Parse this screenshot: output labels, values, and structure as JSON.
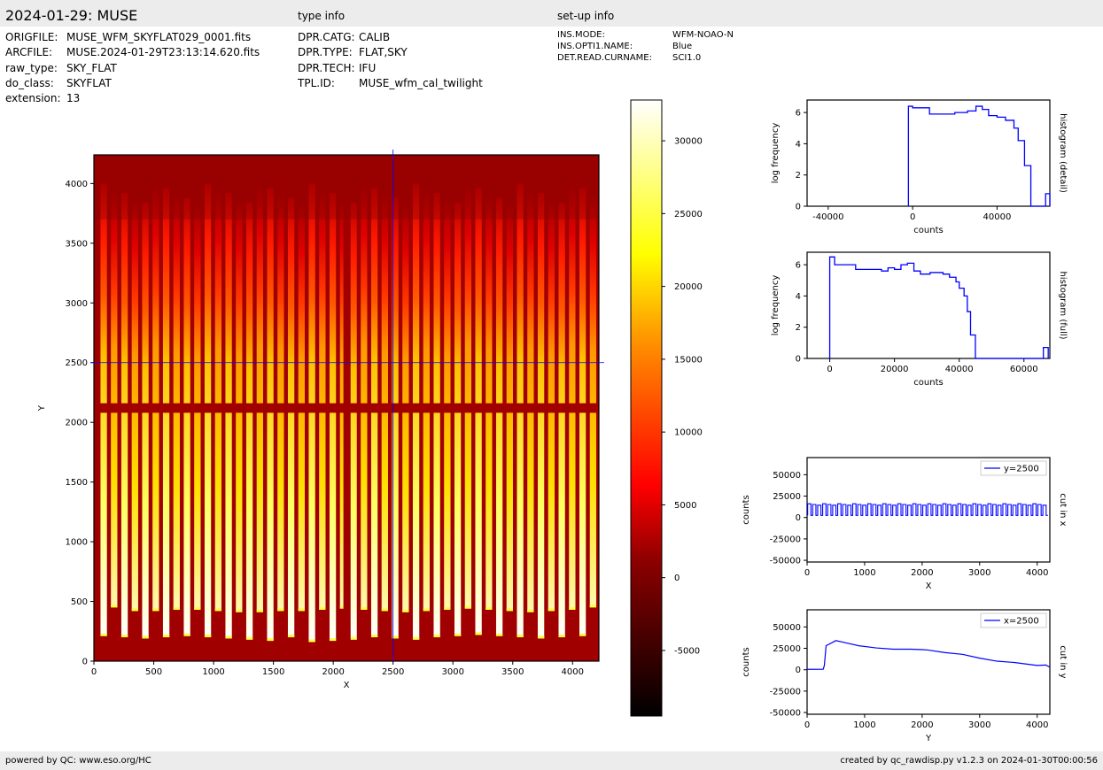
{
  "header": {
    "title": "2024-01-29: MUSE",
    "type_info_label": "type info",
    "setup_info_label": "set-up info"
  },
  "file_info": [
    {
      "key": "ORIGFILE:",
      "value": "MUSE_WFM_SKYFLAT029_0001.fits"
    },
    {
      "key": "ARCFILE:",
      "value": "MUSE.2024-01-29T23:13:14.620.fits"
    },
    {
      "key": "raw_type:",
      "value": "SKY_FLAT"
    },
    {
      "key": "do_class:",
      "value": "SKYFLAT"
    },
    {
      "key": "extension:",
      "value": "13"
    }
  ],
  "type_info": [
    {
      "key": "DPR.CATG:",
      "value": "CALIB"
    },
    {
      "key": "DPR.TYPE:",
      "value": "FLAT,SKY"
    },
    {
      "key": "DPR.TECH:",
      "value": "IFU"
    },
    {
      "key": "TPL.ID:",
      "value": "MUSE_wfm_cal_twilight"
    }
  ],
  "setup_info": [
    {
      "key": "INS.MODE:",
      "value": "WFM-NOAO-N"
    },
    {
      "key": "INS.OPTI1.NAME:",
      "value": "Blue"
    },
    {
      "key": "DET.READ.CURNAME:",
      "value": "SCI1.0"
    }
  ],
  "footer": {
    "left": "powered by QC: www.eso.org/HC",
    "right": "created by qc_rawdisp.py v1.2.3 on 2024-01-30T00:00:56"
  },
  "colors": {
    "accent": "#0000ff",
    "band": "#ececec"
  },
  "chart_data": [
    {
      "type": "heatmap",
      "name": "image",
      "xlabel": "X",
      "ylabel": "Y",
      "xlim": [
        0,
        4220
      ],
      "ylim": [
        0,
        4240
      ],
      "xticks": [
        0,
        500,
        1000,
        1500,
        2000,
        2500,
        3000,
        3500,
        4000
      ],
      "yticks": [
        0,
        500,
        1000,
        1500,
        2000,
        2500,
        3000,
        3500,
        4000
      ],
      "colormap": "hot",
      "cut_x": 2500,
      "cut_y": 2500,
      "num_slices": 48,
      "slice_pitch": 87,
      "gap_rows": [
        2080,
        2160
      ],
      "gap_column": [
        2085,
        2145
      ]
    },
    {
      "type": "heatmap",
      "name": "colorbar",
      "range": [
        -9500,
        32800
      ],
      "ticks": [
        -5000,
        0,
        5000,
        10000,
        15000,
        20000,
        25000,
        30000
      ]
    },
    {
      "type": "line",
      "name": "histogram-detail",
      "xlabel": "counts",
      "ylabel": "log frequency",
      "side_label": "histogram (detail)",
      "xlim": [
        -50000,
        65000
      ],
      "ylim": [
        0,
        6.8
      ],
      "xticks": [
        -40000,
        0,
        40000
      ],
      "yticks": [
        0,
        2,
        4,
        6
      ],
      "steps": [
        [
          -2000,
          6.4
        ],
        [
          0,
          6.3
        ],
        [
          8000,
          5.9
        ],
        [
          20000,
          6.0
        ],
        [
          26000,
          6.1
        ],
        [
          30000,
          6.4
        ],
        [
          33000,
          6.2
        ],
        [
          36000,
          5.8
        ],
        [
          40000,
          5.7
        ],
        [
          44000,
          5.5
        ],
        [
          48000,
          5.0
        ],
        [
          50000,
          4.2
        ],
        [
          53000,
          2.6
        ],
        [
          56000,
          0
        ],
        [
          60000,
          0
        ],
        [
          63000,
          0.8
        ],
        [
          65000,
          0
        ]
      ]
    },
    {
      "type": "line",
      "name": "histogram-full",
      "xlabel": "counts",
      "ylabel": "log frequency",
      "side_label": "histogram (full)",
      "xlim": [
        -7000,
        68000
      ],
      "ylim": [
        0,
        6.8
      ],
      "xticks": [
        0,
        20000,
        40000,
        60000
      ],
      "yticks": [
        0,
        2,
        4,
        6
      ],
      "steps": [
        [
          0,
          6.5
        ],
        [
          1500,
          6.0
        ],
        [
          3000,
          6.0
        ],
        [
          8000,
          5.7
        ],
        [
          16000,
          5.6
        ],
        [
          18000,
          5.8
        ],
        [
          20000,
          5.7
        ],
        [
          22000,
          6.0
        ],
        [
          24000,
          6.1
        ],
        [
          26000,
          5.6
        ],
        [
          28000,
          5.4
        ],
        [
          31000,
          5.5
        ],
        [
          35000,
          5.4
        ],
        [
          37000,
          5.2
        ],
        [
          39000,
          4.9
        ],
        [
          40000,
          4.5
        ],
        [
          41500,
          4.0
        ],
        [
          42500,
          3.0
        ],
        [
          43500,
          1.5
        ],
        [
          45000,
          0
        ],
        [
          66000,
          0.7
        ],
        [
          67500,
          0
        ]
      ]
    },
    {
      "type": "line",
      "name": "cut-x",
      "xlabel": "X",
      "ylabel": "counts",
      "side_label": "cut in x",
      "legend": "y=2500",
      "legend_position": "top-right",
      "xlim": [
        0,
        4220
      ],
      "ylim": [
        -52000,
        70000
      ],
      "xticks": [
        0,
        1000,
        2000,
        3000,
        4000
      ],
      "yticks": [
        -50000,
        -25000,
        0,
        25000,
        50000
      ],
      "high": 16000,
      "low": 2500
    },
    {
      "type": "line",
      "name": "cut-y",
      "xlabel": "Y",
      "ylabel": "counts",
      "side_label": "cut in y",
      "legend": "x=2500",
      "legend_position": "top-right",
      "xlim": [
        0,
        4220
      ],
      "ylim": [
        -52000,
        70000
      ],
      "xticks": [
        0,
        1000,
        2000,
        3000,
        4000
      ],
      "yticks": [
        -50000,
        -25000,
        0,
        25000,
        50000
      ],
      "profile": [
        [
          0,
          500
        ],
        [
          280,
          600
        ],
        [
          300,
          5000
        ],
        [
          330,
          28000
        ],
        [
          500,
          34000
        ],
        [
          700,
          31000
        ],
        [
          900,
          28000
        ],
        [
          1200,
          25500
        ],
        [
          1500,
          24000
        ],
        [
          1800,
          24000
        ],
        [
          2000,
          23500
        ],
        [
          2100,
          23000
        ],
        [
          2400,
          20000
        ],
        [
          2700,
          18000
        ],
        [
          3000,
          13500
        ],
        [
          3300,
          10000
        ],
        [
          3600,
          8500
        ],
        [
          4000,
          5000
        ],
        [
          4150,
          5500
        ],
        [
          4220,
          3000
        ]
      ]
    }
  ]
}
